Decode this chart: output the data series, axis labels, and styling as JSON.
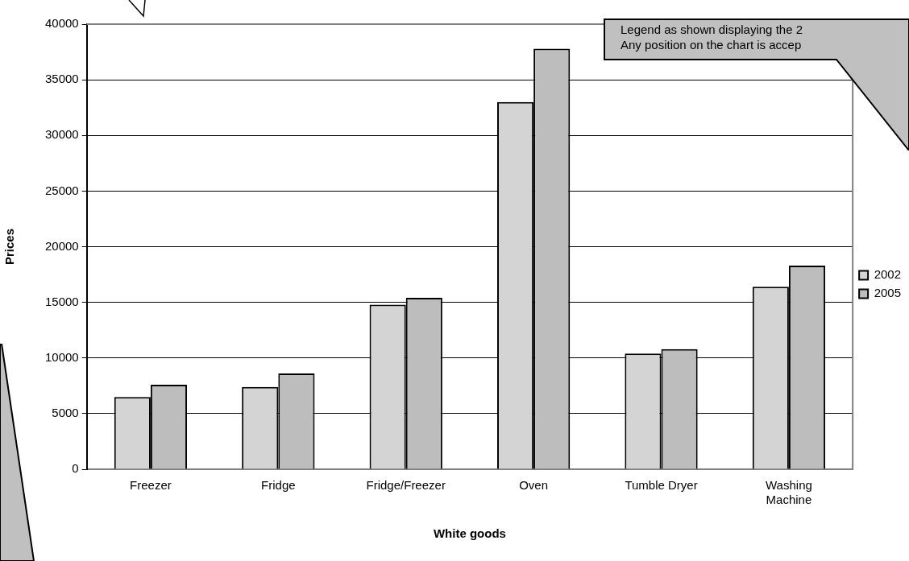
{
  "chart_data": {
    "type": "bar",
    "xlabel": "White goods",
    "ylabel": "Prices",
    "categories": [
      "Freezer",
      "Fridge",
      "Fridge/Freezer",
      "Oven",
      "Tumble Dryer",
      "Washing Machine"
    ],
    "series": [
      {
        "name": "2002",
        "color": "#d4d4d4",
        "values": [
          6500,
          7400,
          14800,
          33000,
          10400,
          16400
        ]
      },
      {
        "name": "2005",
        "color": "#bdbdbd",
        "values": [
          7600,
          8600,
          15400,
          37800,
          10800,
          18300
        ]
      }
    ],
    "ylim": [
      0,
      40000
    ],
    "yticks": [
      0,
      5000,
      10000,
      15000,
      20000,
      25000,
      30000,
      35000,
      40000
    ],
    "grid": "y",
    "legend": "right",
    "annotations": [
      "Legend as shown displaying the 2",
      "Any position on the chart is accep"
    ]
  }
}
